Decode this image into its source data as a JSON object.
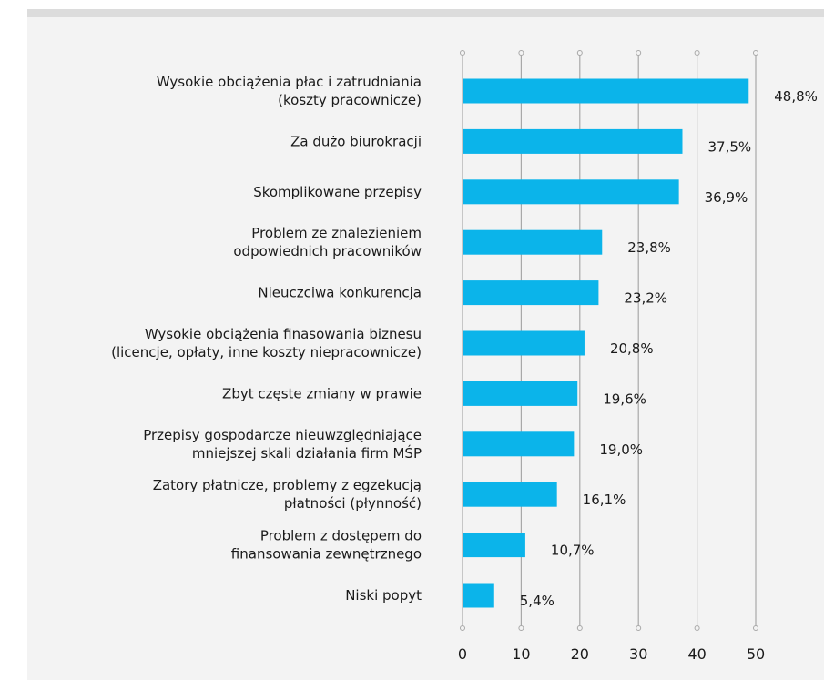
{
  "chart_data": {
    "type": "bar",
    "orientation": "horizontal",
    "categories": [
      [
        "Wysokie obciążenia płac i zatrudniania",
        "(koszty pracownicze)"
      ],
      [
        "Za dużo biurokracji"
      ],
      [
        "Skomplikowane przepisy"
      ],
      [
        "Problem ze znalezieniem",
        "odpowiednich pracowników"
      ],
      [
        "Nieuczciwa konkurencja"
      ],
      [
        "Wysokie obciążenia finasowania biznesu",
        "(licencje, opłaty, inne koszty niepracownicze)"
      ],
      [
        "Zbyt częste zmiany w prawie"
      ],
      [
        "Przepisy gospodarcze nieuwzględniające",
        "mniejszej skali działania firm MŚP"
      ],
      [
        "Zatory płatnicze, problemy z egzekucją",
        "płatności (płynność)"
      ],
      [
        "Problem z dostępem do",
        "finansowania zewnętrznego"
      ],
      [
        "Niski popyt"
      ]
    ],
    "values": [
      48.8,
      37.5,
      36.9,
      23.8,
      23.2,
      20.8,
      19.6,
      19.0,
      16.1,
      10.7,
      5.4
    ],
    "value_labels": [
      "48,8%",
      "37,5%",
      "36,9%",
      "23,8%",
      "23,2%",
      "20,8%",
      "19,6%",
      "19,0%",
      "16,1%",
      "10,7%",
      "5,4%"
    ],
    "color": "#0bb4ea",
    "xlim": [
      0,
      50
    ],
    "xticks": [
      0,
      10,
      20,
      30,
      40,
      50
    ],
    "grid": true
  }
}
